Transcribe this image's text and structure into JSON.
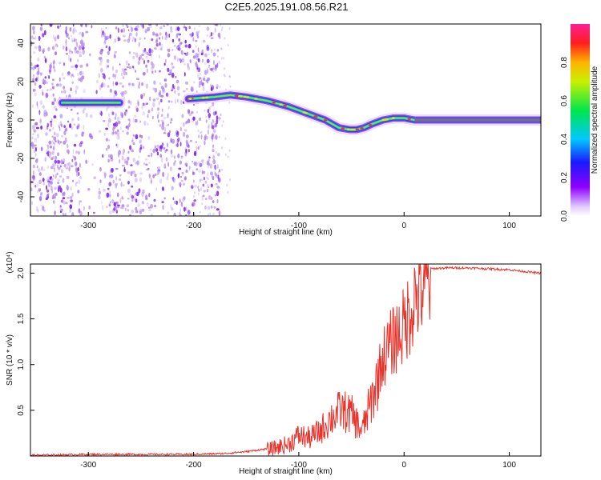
{
  "title": "C2E5.2025.191.08.56.R21",
  "chart_data": [
    {
      "type": "heatmap",
      "xlabel": "Height of straight line (km)",
      "ylabel": "Frequency (Hz)",
      "xlim": [
        -355,
        130
      ],
      "ylim": [
        -50,
        50
      ],
      "x_ticks": [
        -300,
        -200,
        -100,
        0,
        100
      ],
      "y_ticks": [
        -40,
        -20,
        0,
        20,
        40
      ],
      "x_tick_labels": [
        "-300",
        "-200",
        "-100",
        "0",
        "100"
      ],
      "y_tick_labels": [
        "-40",
        "-20",
        "0",
        "20",
        "40"
      ],
      "colorbar": {
        "label": "Normalized spectral amplitude",
        "range": [
          0,
          1
        ],
        "ticks": [
          0,
          0.2,
          0.4,
          0.6,
          0.8
        ],
        "tick_labels": [
          "0.0",
          "0.2",
          "0.4",
          "0.6",
          "0.8"
        ]
      },
      "signal_trace": {
        "x": [
          -325,
          -300,
          -270,
          -205,
          -180,
          -165,
          -150,
          -130,
          -110,
          -90,
          -75,
          -62,
          -52,
          -45,
          -38,
          -30,
          -20,
          -10,
          0,
          10,
          50,
          90,
          130
        ],
        "y": [
          9,
          9,
          9,
          11,
          12,
          13,
          12,
          10,
          7,
          3,
          0,
          -4,
          -5,
          -5,
          -4,
          -2,
          0,
          1,
          1,
          0,
          0,
          0,
          0
        ]
      },
      "grid": false
    },
    {
      "type": "line",
      "xlabel": "Height of straight line (km)",
      "ylabel": "SNR (10 * v/v)",
      "y_scale_label": "(x10⁴)",
      "xlim": [
        -355,
        130
      ],
      "ylim": [
        0,
        2.1
      ],
      "x_ticks": [
        -300,
        -200,
        -100,
        0,
        100
      ],
      "y_ticks": [
        0.5,
        1.0,
        1.5,
        2.0
      ],
      "x_tick_labels": [
        "-300",
        "-200",
        "-100",
        "0",
        "100"
      ],
      "y_tick_labels": [
        "0.5",
        "1.0",
        "1.5",
        "2.0"
      ],
      "series": [
        {
          "color": "#e8322a",
          "x": [
            -355,
            -300,
            -250,
            -200,
            -170,
            -150,
            -130,
            -110,
            -100,
            -90,
            -80,
            -70,
            -60,
            -50,
            -40,
            -30,
            -20,
            -10,
            0,
            10,
            20,
            25,
            40,
            60,
            80,
            100,
            130
          ],
          "y": [
            0.01,
            0.02,
            0.02,
            0.02,
            0.03,
            0.05,
            0.08,
            0.15,
            0.25,
            0.22,
            0.3,
            0.45,
            0.55,
            0.5,
            0.3,
            0.7,
            1.15,
            1.35,
            1.5,
            1.85,
            1.98,
            2.05,
            2.06,
            2.06,
            2.05,
            2.04,
            2.0
          ]
        }
      ],
      "grid": false
    }
  ]
}
